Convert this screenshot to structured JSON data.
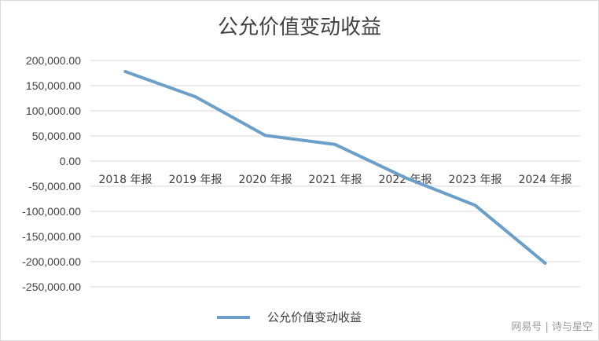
{
  "chart_data": {
    "type": "line",
    "title": "公允价值变动收益",
    "categories": [
      "2018 年报",
      "2019 年报",
      "2020 年报",
      "2021 年报",
      "2022 年报",
      "2023 年报",
      "2024 年报"
    ],
    "series": [
      {
        "name": "公允价值变动收益",
        "values": [
          178000,
          128000,
          51000,
          33000,
          -33000,
          -88000,
          -203000
        ],
        "color": "#6b9ec8"
      }
    ],
    "ylim": [
      -250000,
      200000
    ],
    "yticks": [
      200000,
      150000,
      100000,
      50000,
      0,
      -50000,
      -100000,
      -150000,
      -200000,
      -250000
    ],
    "ytick_labels": [
      "200,000.00",
      "150,000.00",
      "100,000.00",
      "50,000.00",
      "0.00",
      "-50,000.00",
      "-100,000.00",
      "-150,000.00",
      "-200,000.00",
      "-250,000.00"
    ],
    "grid": true,
    "legend_position": "bottom"
  },
  "watermark": "网易号 | 诗与星空"
}
